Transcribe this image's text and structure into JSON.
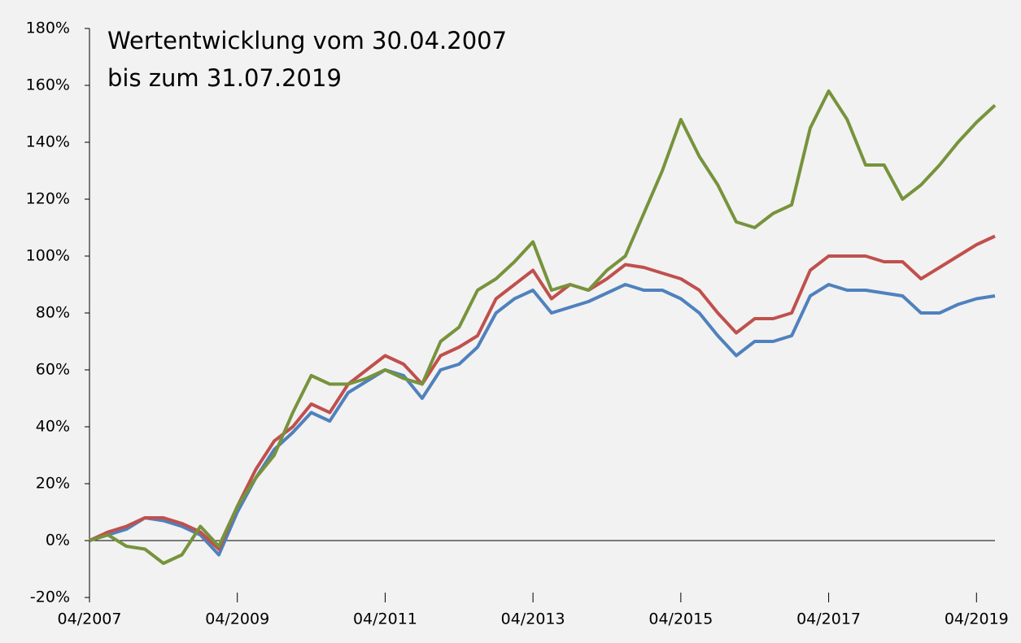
{
  "chart_data": {
    "type": "line",
    "title": [
      "Wertentwicklung vom 30.04.2007",
      "bis zum 31.07.2019"
    ],
    "x": [
      "04/2007",
      "07/2007",
      "10/2007",
      "01/2008",
      "04/2008",
      "07/2008",
      "10/2008",
      "01/2009",
      "04/2009",
      "07/2009",
      "10/2009",
      "01/2010",
      "04/2010",
      "07/2010",
      "10/2010",
      "01/2011",
      "04/2011",
      "07/2011",
      "10/2011",
      "01/2012",
      "04/2012",
      "07/2012",
      "10/2012",
      "01/2013",
      "04/2013",
      "07/2013",
      "10/2013",
      "01/2014",
      "04/2014",
      "07/2014",
      "10/2014",
      "01/2015",
      "04/2015",
      "07/2015",
      "10/2015",
      "01/2016",
      "04/2016",
      "07/2016",
      "10/2016",
      "01/2017",
      "04/2017",
      "07/2017",
      "10/2017",
      "01/2018",
      "04/2018",
      "07/2018",
      "10/2018",
      "01/2019",
      "04/2019",
      "07/2019"
    ],
    "series": [
      {
        "color": "#4f81bd",
        "values": [
          0,
          2,
          4,
          8,
          7,
          5,
          2,
          -5,
          10,
          22,
          32,
          38,
          45,
          42,
          52,
          56,
          60,
          58,
          50,
          60,
          62,
          68,
          80,
          85,
          88,
          80,
          82,
          84,
          87,
          90,
          88,
          88,
          85,
          80,
          72,
          65,
          70,
          70,
          72,
          86,
          90,
          88,
          88,
          87,
          86,
          80,
          80,
          83,
          85,
          86
        ]
      },
      {
        "color": "#c0504d",
        "values": [
          0,
          3,
          5,
          8,
          8,
          6,
          3,
          -3,
          12,
          25,
          35,
          40,
          48,
          45,
          55,
          60,
          65,
          62,
          55,
          65,
          68,
          72,
          85,
          90,
          95,
          85,
          90,
          88,
          92,
          97,
          96,
          94,
          92,
          88,
          80,
          73,
          78,
          78,
          80,
          95,
          100,
          100,
          100,
          98,
          98,
          92,
          96,
          100,
          104,
          107
        ]
      },
      {
        "color": "#77933c",
        "values": [
          0,
          2,
          -2,
          -3,
          -8,
          -5,
          5,
          -2,
          12,
          22,
          30,
          45,
          58,
          55,
          55,
          57,
          60,
          57,
          55,
          70,
          75,
          88,
          92,
          98,
          105,
          88,
          90,
          88,
          95,
          100,
          115,
          130,
          148,
          135,
          125,
          112,
          110,
          115,
          118,
          145,
          158,
          148,
          132,
          132,
          120,
          125,
          132,
          140,
          147,
          153
        ]
      }
    ],
    "xlim": [
      "04/2007",
      "07/2019"
    ],
    "xticks": [
      "04/2007",
      "04/2009",
      "04/2011",
      "04/2013",
      "04/2015",
      "04/2017",
      "04/2019"
    ],
    "ylim": [
      -20,
      180
    ],
    "yticks": [
      {
        "value": -20,
        "label": "-20%"
      },
      {
        "value": 0,
        "label": "0%"
      },
      {
        "value": 20,
        "label": "20%"
      },
      {
        "value": 40,
        "label": "40%"
      },
      {
        "value": 60,
        "label": "60%"
      },
      {
        "value": 80,
        "label": "80%"
      },
      {
        "value": 100,
        "label": "100%"
      },
      {
        "value": 120,
        "label": "120%"
      },
      {
        "value": 140,
        "label": "140%"
      },
      {
        "value": 160,
        "label": "160%"
      },
      {
        "value": 180,
        "label": "180%"
      }
    ],
    "grid": false
  }
}
